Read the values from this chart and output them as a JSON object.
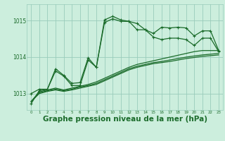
{
  "bg_color": "#cceedd",
  "grid_color": "#99ccbb",
  "line_color": "#1a6b2a",
  "title": "Graphe pression niveau de la mer (hPa)",
  "title_fontsize": 7.5,
  "ylabel_ticks": [
    1013,
    1014,
    1015
  ],
  "xlim": [
    -0.5,
    23.5
  ],
  "ylim": [
    1012.55,
    1015.45
  ],
  "series1_x": [
    0,
    1,
    2,
    3,
    4,
    5,
    6,
    7,
    8,
    9,
    10,
    11,
    12,
    13,
    14,
    15,
    16,
    17,
    18,
    19,
    20,
    21,
    22,
    23
  ],
  "series1_y": [
    1012.72,
    1013.08,
    1013.12,
    1013.68,
    1013.5,
    1013.28,
    1013.3,
    1013.98,
    1013.72,
    1015.02,
    1015.12,
    1015.02,
    1014.98,
    1014.92,
    1014.75,
    1014.65,
    1014.82,
    1014.8,
    1014.82,
    1014.8,
    1014.58,
    1014.72,
    1014.72,
    1014.18
  ],
  "series2_x": [
    0,
    1,
    2,
    3,
    4,
    5,
    6,
    7,
    8,
    9,
    10,
    11,
    12,
    13,
    14,
    15,
    16,
    17,
    18,
    19,
    20,
    21,
    22,
    23
  ],
  "series2_y": [
    1013.0,
    1013.12,
    1013.12,
    1013.62,
    1013.48,
    1013.22,
    1013.22,
    1013.92,
    1013.72,
    1014.95,
    1015.05,
    1014.98,
    1014.98,
    1014.75,
    1014.75,
    1014.55,
    1014.48,
    1014.52,
    1014.52,
    1014.48,
    1014.32,
    1014.52,
    1014.52,
    1014.15
  ],
  "series3_y": [
    1012.78,
    1013.05,
    1013.1,
    1013.15,
    1013.1,
    1013.15,
    1013.2,
    1013.25,
    1013.32,
    1013.42,
    1013.52,
    1013.62,
    1013.72,
    1013.8,
    1013.85,
    1013.9,
    1013.95,
    1014.0,
    1014.05,
    1014.1,
    1014.15,
    1014.18,
    1014.18,
    1014.18
  ],
  "series4_y": [
    1012.78,
    1013.02,
    1013.08,
    1013.12,
    1013.08,
    1013.12,
    1013.18,
    1013.22,
    1013.28,
    1013.38,
    1013.48,
    1013.58,
    1013.68,
    1013.75,
    1013.8,
    1013.85,
    1013.88,
    1013.92,
    1013.96,
    1014.0,
    1014.03,
    1014.06,
    1014.08,
    1014.1
  ],
  "series5_y": [
    1012.78,
    1013.0,
    1013.06,
    1013.1,
    1013.06,
    1013.1,
    1013.15,
    1013.2,
    1013.25,
    1013.35,
    1013.45,
    1013.55,
    1013.65,
    1013.72,
    1013.77,
    1013.82,
    1013.85,
    1013.88,
    1013.92,
    1013.96,
    1013.99,
    1014.02,
    1014.04,
    1014.06
  ]
}
